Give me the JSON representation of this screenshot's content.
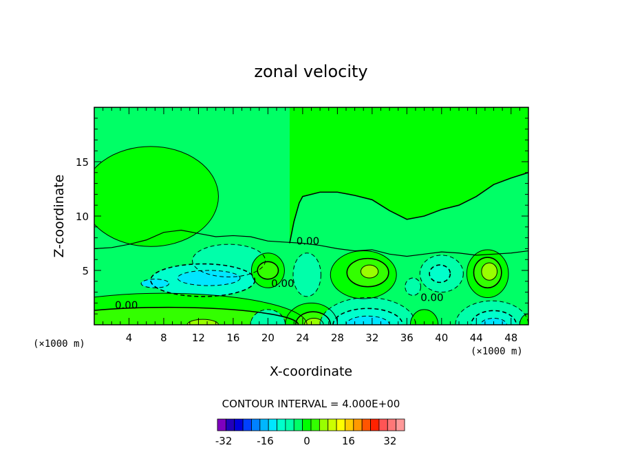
{
  "chart_data": {
    "type": "contour",
    "title": "zonal velocity",
    "xlabel": "X-coordinate",
    "ylabel": "Z-coordinate",
    "x_unit": "(×1000 m)",
    "y_unit": "(×1000 m)",
    "xlim": [
      0,
      50
    ],
    "ylim": [
      0,
      20
    ],
    "x_ticks": [
      4,
      8,
      12,
      16,
      20,
      24,
      28,
      32,
      36,
      40,
      44,
      48
    ],
    "y_ticks": [
      5,
      10,
      15
    ],
    "contour_interval_text": "CONTOUR INTERVAL = 4.000E+00",
    "contour_labels": [
      {
        "text": "0.00",
        "x": 24.6,
        "z": 7.7
      },
      {
        "text": "0.00",
        "x": 3.7,
        "z": 1.8
      },
      {
        "text": "0.00",
        "x": 38.9,
        "z": 2.5
      },
      {
        "text": "0.00",
        "x": 21.7,
        "z": 3.8
      }
    ],
    "regions": [
      {
        "kind": "closed",
        "level": 4,
        "cx": 6.5,
        "cz": 11.8,
        "rx": 7.8,
        "rz": 4.6
      },
      {
        "kind": "closed",
        "level": -4,
        "cx": 15.5,
        "cz": 5.9,
        "rx": 4.2,
        "rz": 1.5
      },
      {
        "kind": "closed",
        "level": -8,
        "cx": 12.5,
        "cz": 4.1,
        "rx": 6.0,
        "rz": 1.5
      },
      {
        "kind": "closed",
        "level": -12,
        "cx": 13.2,
        "cz": 4.3,
        "rx": 3.6,
        "rz": 0.7
      },
      {
        "kind": "closed",
        "level": -12,
        "cx": 7.0,
        "cz": 3.8,
        "rx": 1.6,
        "rz": 0.4
      },
      {
        "kind": "closed",
        "level": 4,
        "cx": 20.0,
        "cz": 5.0,
        "rx": 1.9,
        "rz": 1.6
      },
      {
        "kind": "closed",
        "level": 8,
        "cx": 20.0,
        "cz": 5.0,
        "rx": 1.2,
        "rz": 0.8
      },
      {
        "kind": "closed",
        "level": -4,
        "cx": 24.5,
        "cz": 4.6,
        "rx": 1.6,
        "rz": 2.0
      },
      {
        "kind": "closed",
        "level": 4,
        "cx": 31.0,
        "cz": 4.6,
        "rx": 3.8,
        "rz": 2.2
      },
      {
        "kind": "closed",
        "level": 8,
        "cx": 31.5,
        "cz": 4.8,
        "rx": 2.4,
        "rz": 1.3
      },
      {
        "kind": "closed",
        "level": 12,
        "cx": 31.7,
        "cz": 4.9,
        "rx": 1.0,
        "rz": 0.6
      },
      {
        "kind": "closed",
        "level": -4,
        "cx": 40.0,
        "cz": 4.7,
        "rx": 2.5,
        "rz": 1.7
      },
      {
        "kind": "closed",
        "level": -8,
        "cx": 39.8,
        "cz": 4.7,
        "rx": 1.2,
        "rz": 0.8
      },
      {
        "kind": "closed",
        "level": 4,
        "cx": 45.3,
        "cz": 4.7,
        "rx": 2.4,
        "rz": 2.2
      },
      {
        "kind": "closed",
        "level": 8,
        "cx": 45.3,
        "cz": 4.8,
        "rx": 1.6,
        "rz": 1.4
      },
      {
        "kind": "closed",
        "level": 12,
        "cx": 45.5,
        "cz": 4.9,
        "rx": 0.9,
        "rz": 0.8
      },
      {
        "kind": "closed",
        "level": -4,
        "cx": 36.7,
        "cz": 3.5,
        "rx": 0.9,
        "rz": 0.8
      },
      {
        "kind": "bottom",
        "level": 4,
        "cx": 8.0,
        "cz": 0.0,
        "rx": 16.5,
        "rz": 2.9
      },
      {
        "kind": "bottom",
        "level": 8,
        "cx": 8.5,
        "cz": 0.0,
        "rx": 15.0,
        "rz": 1.6
      },
      {
        "kind": "bottom",
        "level": 12,
        "cx": 12.5,
        "cz": 0.0,
        "rx": 1.8,
        "rz": 0.5
      },
      {
        "kind": "bottom",
        "level": -4,
        "cx": 20.0,
        "cz": 0.0,
        "rx": 2.0,
        "rz": 1.4
      },
      {
        "kind": "bottom",
        "level": 4,
        "cx": 25.0,
        "cz": 0.0,
        "rx": 3.0,
        "rz": 2.0
      },
      {
        "kind": "bottom",
        "level": 8,
        "cx": 25.2,
        "cz": 0.0,
        "rx": 2.0,
        "rz": 1.2
      },
      {
        "kind": "bottom",
        "level": 12,
        "cx": 25.3,
        "cz": 0.0,
        "rx": 1.1,
        "rz": 0.6
      },
      {
        "kind": "bottom",
        "level": -4,
        "cx": 31.5,
        "cz": 0.0,
        "rx": 5.5,
        "rz": 2.5
      },
      {
        "kind": "bottom",
        "level": -8,
        "cx": 31.5,
        "cz": 0.0,
        "rx": 4.0,
        "rz": 1.5
      },
      {
        "kind": "bottom",
        "level": -12,
        "cx": 31.5,
        "cz": 0.0,
        "rx": 2.5,
        "rz": 0.8
      },
      {
        "kind": "bottom",
        "level": 4,
        "cx": 38.0,
        "cz": 0.0,
        "rx": 1.6,
        "rz": 1.4
      },
      {
        "kind": "bottom",
        "level": -4,
        "cx": 45.8,
        "cz": 0.0,
        "rx": 4.2,
        "rz": 2.2
      },
      {
        "kind": "bottom",
        "level": -8,
        "cx": 46.0,
        "cz": 0.0,
        "rx": 2.6,
        "rz": 1.3
      },
      {
        "kind": "bottom",
        "level": -12,
        "cx": 46.0,
        "cz": 0.0,
        "rx": 1.5,
        "rz": 0.6
      },
      {
        "kind": "bottom",
        "level": 4,
        "cx": 50.0,
        "cz": 0.0,
        "rx": 1.0,
        "rz": 1.0
      }
    ],
    "background_level": 0,
    "zero_upper_boundary_z": [
      [
        0,
        7.0
      ],
      [
        2,
        7.1
      ],
      [
        4,
        7.4
      ],
      [
        6,
        7.8
      ],
      [
        8,
        8.5
      ],
      [
        10,
        8.7
      ],
      [
        12,
        8.4
      ],
      [
        14,
        8.1
      ],
      [
        16,
        8.2
      ],
      [
        18,
        8.1
      ],
      [
        20,
        7.7
      ],
      [
        22,
        7.6
      ],
      [
        24,
        7.5
      ],
      [
        26,
        7.3
      ],
      [
        28,
        7.0
      ],
      [
        30,
        6.8
      ],
      [
        32,
        6.9
      ],
      [
        34,
        6.5
      ],
      [
        36,
        6.3
      ],
      [
        38,
        6.5
      ],
      [
        40,
        6.7
      ],
      [
        42,
        6.6
      ],
      [
        44,
        6.4
      ],
      [
        46,
        6.5
      ],
      [
        48,
        6.6
      ],
      [
        50,
        6.8
      ]
    ],
    "upper_positive_boundary_z": [
      [
        22.5,
        7.5
      ],
      [
        23,
        9.5
      ],
      [
        23.6,
        11.2
      ],
      [
        24,
        11.8
      ],
      [
        26,
        12.2
      ],
      [
        28,
        12.2
      ],
      [
        30,
        11.9
      ],
      [
        32,
        11.5
      ],
      [
        34,
        10.5
      ],
      [
        36,
        9.7
      ],
      [
        38,
        10.0
      ],
      [
        40,
        10.6
      ],
      [
        42,
        11.0
      ],
      [
        44,
        11.8
      ],
      [
        46,
        12.9
      ],
      [
        48,
        13.5
      ],
      [
        50,
        14.0
      ]
    ],
    "colorbar": {
      "ticks": [
        "-32",
        "-16",
        "0",
        "16",
        "32"
      ],
      "tick_values": [
        -32,
        -16,
        0,
        16,
        32
      ],
      "levels_min": -36,
      "levels_max": 36,
      "interval": 4,
      "colors": [
        "#7f00bf",
        "#2200bb",
        "#0000dd",
        "#0040ff",
        "#0082ff",
        "#00b6ff",
        "#00e6ff",
        "#00ffcc",
        "#00ffaa",
        "#00ff66",
        "#00ff00",
        "#33ff00",
        "#99ff00",
        "#ccff00",
        "#ffff00",
        "#ffcc00",
        "#ff9900",
        "#ff5500",
        "#ff2200",
        "#ff5555",
        "#ff7777",
        "#ff9999"
      ]
    }
  }
}
